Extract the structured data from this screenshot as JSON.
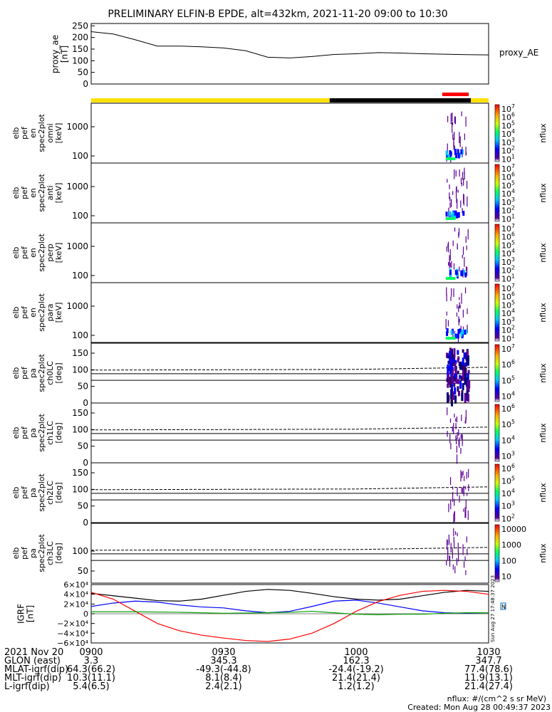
{
  "title": "PRELIMINARY ELFIN-B EPDE, alt=432km, 2021-11-20 09:00 to 10:30",
  "colors": {
    "day_bar": "#ffe000",
    "night_bar": "#000000",
    "science_zone": "#ff0000",
    "grf_x": "#000000",
    "grf_y": "#0000ff",
    "grf_z": "#ff0000",
    "grf_green": "#00a000"
  },
  "chart_data": [
    {
      "type": "line",
      "panel": "proxy_ae",
      "ylabel": [
        "proxy_ae",
        "[nT]"
      ],
      "yticks": [
        "250",
        "200",
        "150",
        "100",
        "50",
        "0"
      ],
      "ylim": [
        0,
        260
      ],
      "series": [
        {
          "name": "proxy_AE",
          "x": [
            0,
            5,
            10,
            15,
            20,
            25,
            30,
            35,
            40,
            45,
            50,
            55,
            60,
            65,
            70,
            75,
            80,
            85,
            90
          ],
          "values": [
            225,
            215,
            190,
            163,
            163,
            160,
            155,
            143,
            115,
            112,
            118,
            127,
            130,
            135,
            133,
            130,
            128,
            126,
            125
          ]
        }
      ]
    },
    {
      "type": "heatmap",
      "panel": "omni",
      "ylabel": [
        "elb",
        "pef",
        "en",
        "spec2plot",
        "omni",
        "[keV]"
      ],
      "yticks": [
        "1000",
        "100"
      ],
      "colorbar_label": "nflux",
      "colorbar_ticks": [
        "10^7",
        "10^6",
        "10^5",
        "10^4",
        "10^3",
        "10^2",
        "10^1"
      ]
    },
    {
      "type": "heatmap",
      "panel": "anti",
      "ylabel": [
        "elb",
        "pef",
        "en",
        "spec2plot",
        "anti",
        "[keV]"
      ],
      "yticks": [
        "1000",
        "100"
      ],
      "colorbar_label": "nflux",
      "colorbar_ticks": [
        "10^7",
        "10^6",
        "10^5",
        "10^4",
        "10^3",
        "10^2",
        "10^1"
      ]
    },
    {
      "type": "heatmap",
      "panel": "perp",
      "ylabel": [
        "elb",
        "pef",
        "en",
        "spec2plot",
        "perp",
        "[keV]"
      ],
      "yticks": [
        "1000",
        "100"
      ],
      "colorbar_label": "nflux",
      "colorbar_ticks": [
        "10^7",
        "10^6",
        "10^5",
        "10^4",
        "10^3",
        "10^2",
        "10^1"
      ]
    },
    {
      "type": "heatmap",
      "panel": "para",
      "ylabel": [
        "elb",
        "pef",
        "en",
        "spec2plot",
        "para",
        "[keV]"
      ],
      "yticks": [
        "1000",
        "100"
      ],
      "colorbar_label": "nflux",
      "colorbar_ticks": [
        "10^7",
        "10^6",
        "10^5",
        "10^4",
        "10^3",
        "10^2",
        "10^1"
      ]
    },
    {
      "type": "heatmap",
      "panel": "ch0LC",
      "ylabel": [
        "elb",
        "pef",
        "pa",
        "spec2plot",
        "ch0LC",
        "[deg]"
      ],
      "yticks": [
        "150",
        "100",
        "50",
        "0"
      ],
      "colorbar_label": "nflux",
      "colorbar_ticks": [
        "10^7",
        "10^6",
        "10^5",
        "10^4"
      ]
    },
    {
      "type": "heatmap",
      "panel": "ch1LC",
      "ylabel": [
        "elb",
        "pef",
        "pa",
        "spec2plot",
        "ch1LC",
        "[deg]"
      ],
      "yticks": [
        "150",
        "100",
        "50",
        "0"
      ],
      "colorbar_label": "nflux",
      "colorbar_ticks": [
        "10^6",
        "10^5",
        "10^4",
        "10^3"
      ]
    },
    {
      "type": "heatmap",
      "panel": "ch2LC",
      "ylabel": [
        "elb",
        "pef",
        "pa",
        "spec2plot",
        "ch2LC",
        "[deg]"
      ],
      "yticks": [
        "150",
        "100",
        "50",
        "0"
      ],
      "colorbar_label": "nflux",
      "colorbar_ticks": [
        "10^6",
        "10^5",
        "10^4",
        "10^3",
        "10^2"
      ]
    },
    {
      "type": "heatmap",
      "panel": "ch3LC",
      "ylabel": [
        "elb",
        "pef",
        "pa",
        "spec2plot",
        "ch3LC",
        "[deg]"
      ],
      "yticks": [
        "100",
        "50"
      ],
      "colorbar_label": "nflux",
      "colorbar_ticks": [
        "10000",
        "1000",
        "100",
        "10"
      ]
    },
    {
      "type": "line",
      "panel": "grf",
      "ylabel": [
        "IGRF",
        "[nT]"
      ],
      "yticks": [
        "6×10⁴",
        "4×10⁴",
        "2×10⁴",
        "0",
        "−2×10⁴",
        "−4×10⁴",
        "−6×10⁴"
      ],
      "ylim": [
        -60000,
        60000
      ],
      "side_label": "Sun Aug 27 17:48:37 2023",
      "legend_swatch": "N",
      "series": [
        {
          "x": [
            0,
            5,
            10,
            15,
            20,
            25,
            30,
            35,
            40,
            45,
            50,
            55,
            60,
            65,
            70,
            75,
            80,
            85,
            90
          ],
          "values": [
            42000,
            37000,
            32000,
            27000,
            26000,
            30000,
            38000,
            46000,
            50000,
            48000,
            42000,
            35000,
            30000,
            28000,
            30000,
            37000,
            44000,
            48000,
            46000
          ]
        },
        {
          "x": [
            0,
            5,
            10,
            15,
            20,
            25,
            30,
            35,
            40,
            45,
            50,
            55,
            60,
            65,
            70,
            75,
            80,
            85,
            90
          ],
          "values": [
            15000,
            22000,
            26000,
            24000,
            18000,
            14000,
            12000,
            6000,
            2000,
            5000,
            15000,
            26000,
            28000,
            22000,
            14000,
            6000,
            2000,
            1000,
            2000
          ]
        },
        {
          "x": [
            0,
            5,
            10,
            15,
            20,
            25,
            30,
            35,
            40,
            45,
            50,
            55,
            60,
            65,
            70,
            75,
            80,
            85,
            90
          ],
          "values": [
            44000,
            30000,
            5000,
            -20000,
            -35000,
            -44000,
            -50000,
            -55000,
            -57000,
            -52000,
            -40000,
            -20000,
            5000,
            25000,
            38000,
            46000,
            48000,
            46000,
            40000
          ]
        },
        {
          "x": [
            0,
            10,
            20,
            30,
            40,
            45,
            50,
            55,
            60,
            65,
            70,
            75,
            80,
            85,
            90
          ],
          "values": [
            4000,
            4000,
            3000,
            1000,
            2000,
            3000,
            5000,
            2000,
            -1000,
            -2000,
            -1000,
            -1000,
            1000,
            2000,
            2000
          ]
        }
      ]
    }
  ],
  "time_axis": {
    "ticks": [
      "0900",
      "0930",
      "1000",
      "1030"
    ],
    "rows": [
      {
        "label": "2021 Nov 20",
        "values": [
          "",
          "",
          "",
          ""
        ]
      },
      {
        "label": "GLON (east)",
        "values": [
          "3.3",
          "345.3",
          "162.3",
          "347.7"
        ]
      },
      {
        "label": "MLAT-igrf(dip)",
        "values": [
          "64.3(66.2)",
          "-49.3(-44.8)",
          "-24.4(-19.2)",
          "77.4(78.6)"
        ]
      },
      {
        "label": "MLT-igrf(dip)",
        "values": [
          "10.3(11.1)",
          "8.1(8.4)",
          "21.4(21.4)",
          "11.9(13.1)"
        ]
      },
      {
        "label": "L-igrf(dip)",
        "values": [
          "5.4(6.5)",
          "2.4(2.1)",
          "1.2(1.2)",
          "21.4(27.4)"
        ]
      }
    ]
  },
  "footer": {
    "units": "nflux: #/(cm^2 s sr MeV)",
    "created": "Created: Mon Aug 28 00:49:37 2023"
  }
}
